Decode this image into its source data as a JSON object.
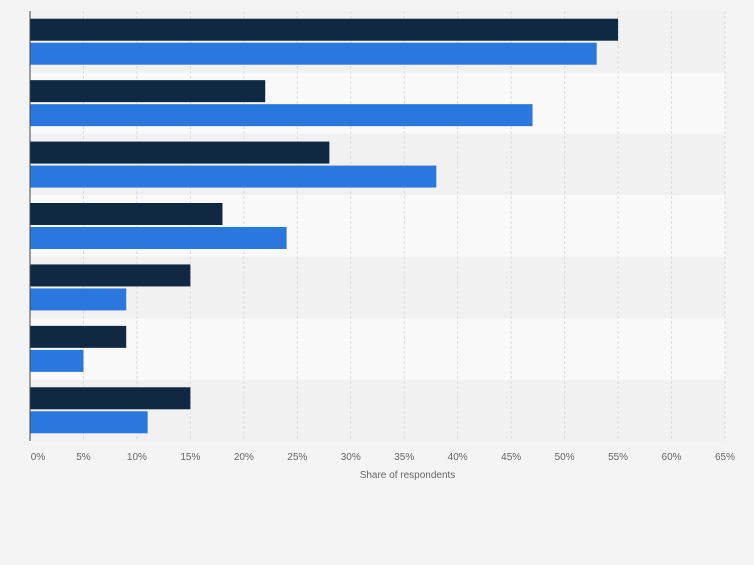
{
  "chart_data": {
    "type": "bar",
    "orientation": "horizontal",
    "categories": [
      "",
      "",
      "",
      "",
      "",
      "",
      ""
    ],
    "series": [
      {
        "color": "#0f2942",
        "values": [
          55,
          22,
          28,
          18,
          15,
          9,
          15
        ]
      },
      {
        "color": "#2a77dd",
        "values": [
          53,
          47,
          38,
          24,
          9,
          5,
          11
        ]
      }
    ],
    "xlabel": "Share of respondents",
    "xlim": [
      0,
      65
    ],
    "xticks": [
      "0%",
      "5%",
      "10%",
      "15%",
      "20%",
      "25%",
      "30%",
      "35%",
      "40%",
      "45%",
      "50%",
      "55%",
      "60%",
      "65%"
    ],
    "xtick_values": [
      0,
      5,
      10,
      15,
      20,
      25,
      30,
      35,
      40,
      45,
      50,
      55,
      60,
      65
    ],
    "grid": true,
    "legend": "none",
    "colors": {
      "background": "#f4f4f4",
      "band_light": "#f9f9f9",
      "band_dark": "#f1f1f1",
      "grid": "#dcdcdc",
      "axis": "#444444",
      "tick_text": "#666666"
    }
  }
}
